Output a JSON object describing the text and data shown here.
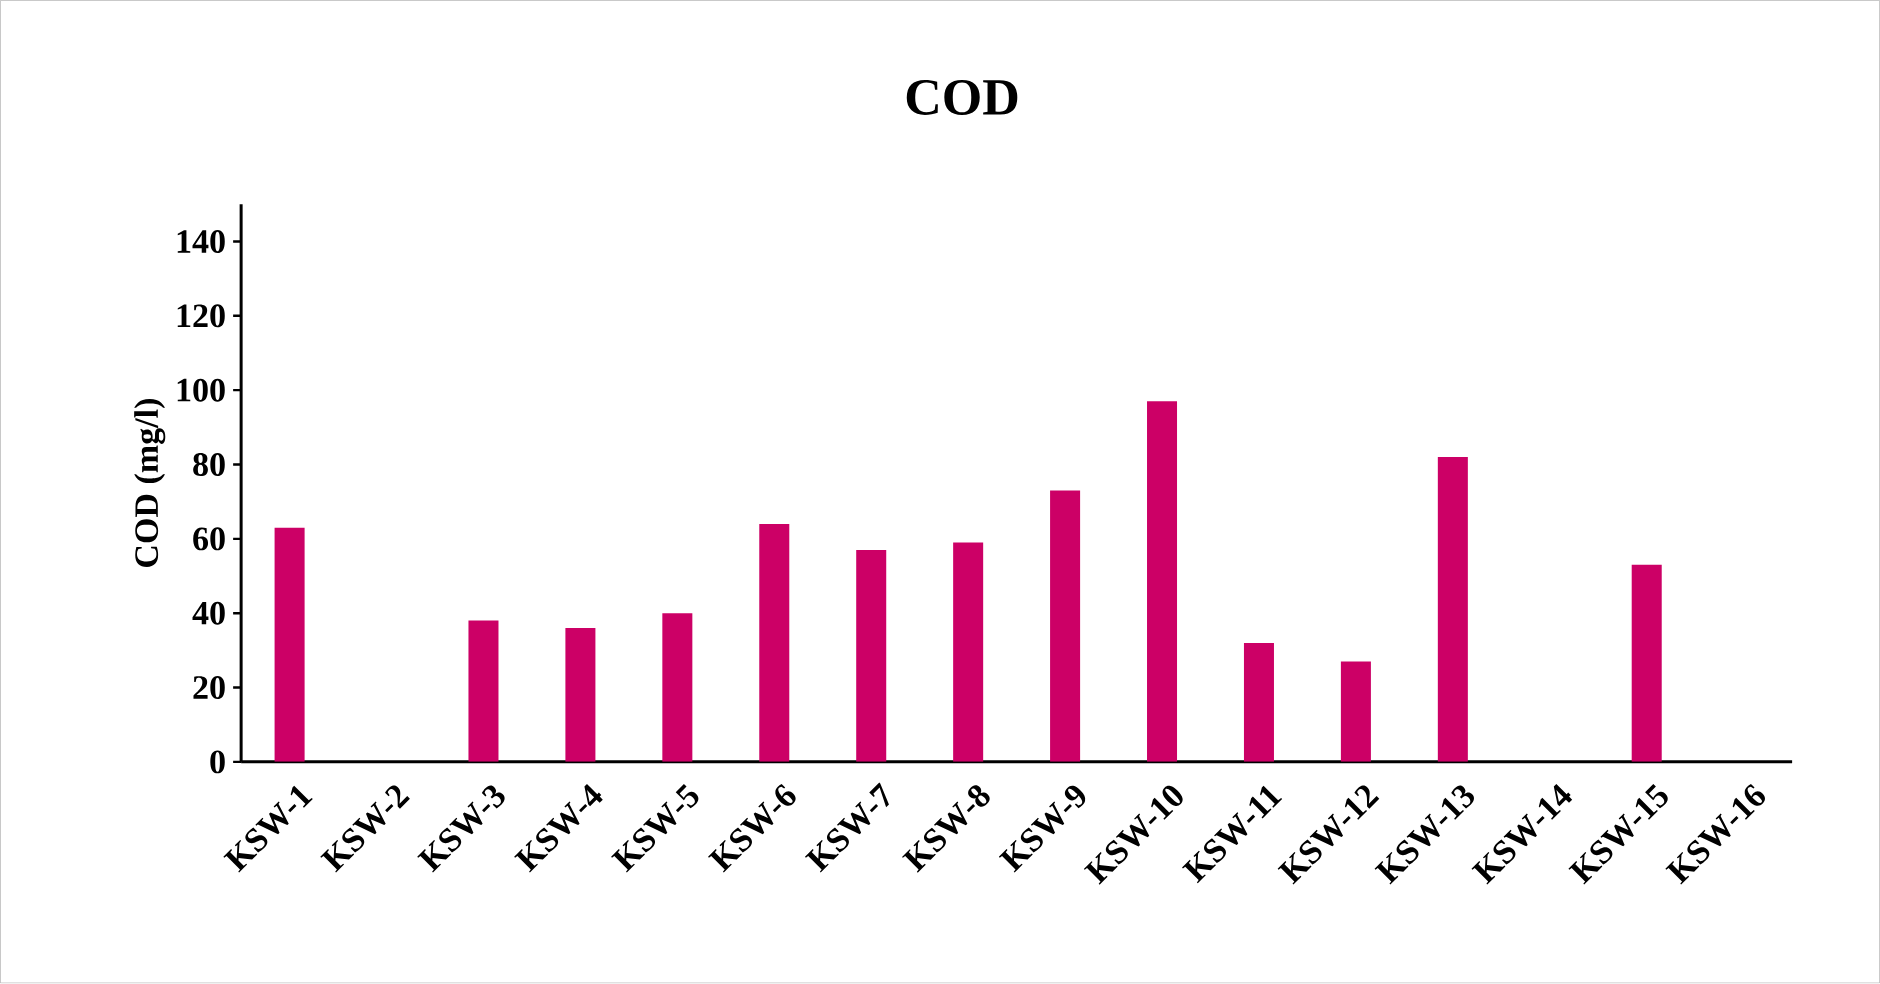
{
  "chart_data": {
    "type": "bar",
    "title": "COD",
    "ylabel": "COD  (mg/l)",
    "categories": [
      "KSW-1",
      "KSW-2",
      "KSW-3",
      "KSW-4",
      "KSW-5",
      "KSW-6",
      "KSW-7",
      "KSW-8",
      "KSW-9",
      "KSW-10",
      "KSW-11",
      "KSW-12",
      "KSW-13",
      "KSW-14",
      "KSW-15",
      "KSW-16"
    ],
    "values": [
      63,
      null,
      38,
      36,
      40,
      64,
      57,
      59,
      73,
      97,
      32,
      27,
      82,
      null,
      53,
      null
    ],
    "color": "#cc0066",
    "ylim": [
      0,
      150
    ],
    "yticks": [
      0,
      20,
      40,
      60,
      80,
      100,
      120,
      140
    ],
    "grid": false
  }
}
